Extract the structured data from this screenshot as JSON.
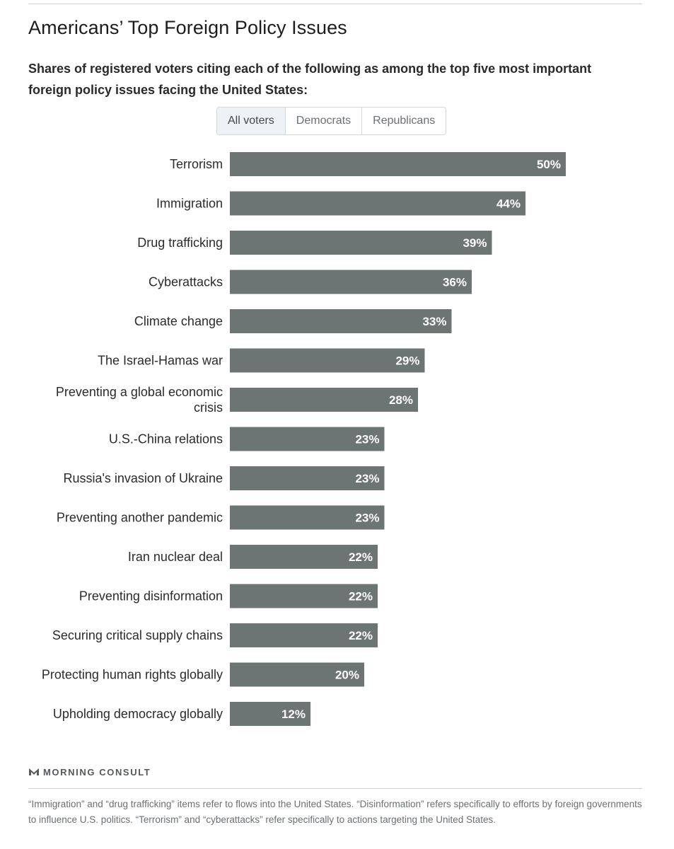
{
  "title": "Americans’ Top Foreign Policy Issues",
  "subtitle": "Shares of registered voters citing each of the following as among the top five most important foreign policy issues facing the United States:",
  "tabs": [
    {
      "label": "All voters",
      "active": true
    },
    {
      "label": "Democrats",
      "active": false
    },
    {
      "label": "Republicans",
      "active": false
    }
  ],
  "colors": {
    "bar": "#6d7574",
    "active_tab_bg": "#eef1f6"
  },
  "chart_data": {
    "type": "bar",
    "orientation": "horizontal",
    "title": "Americans’ Top Foreign Policy Issues",
    "xlabel": "",
    "ylabel": "",
    "xlim": [
      0,
      100
    ],
    "value_suffix": "%",
    "categories": [
      "Terrorism",
      "Immigration",
      "Drug trafficking",
      "Cyberattacks",
      "Climate change",
      "The Israel-Hamas war",
      "Preventing a global economic crisis",
      "U.S.-China relations",
      "Russia's invasion of Ukraine",
      "Preventing another pandemic",
      "Iran nuclear deal",
      "Preventing disinformation",
      "Securing critical supply chains",
      "Protecting human rights globally",
      "Upholding democracy globally"
    ],
    "values": [
      50,
      44,
      39,
      36,
      33,
      29,
      28,
      23,
      23,
      23,
      22,
      22,
      22,
      20,
      12
    ]
  },
  "brand": {
    "name": "MORNING CONSULT",
    "icon": "morning-consult-logo"
  },
  "footnote": "“Immigration” and “drug trafficking” items refer to flows into the United States. “Disinformation” refers specifically to efforts by foreign governments to influence U.S. politics. “Terrorism” and “cyberattacks” refer specifically to actions targeting the United States."
}
